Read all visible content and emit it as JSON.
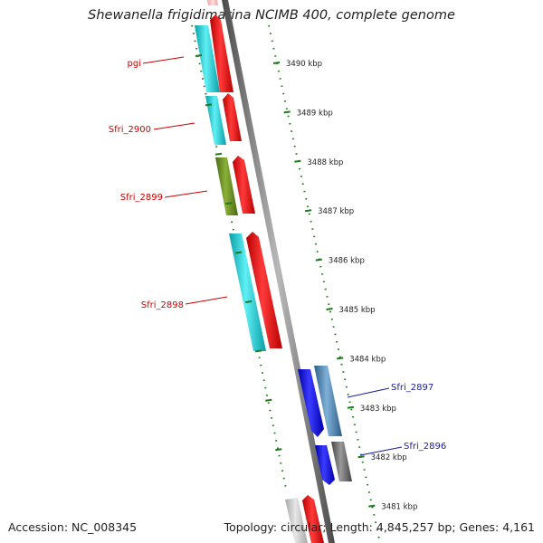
{
  "header": {
    "title": "Shewanella frigidimarina NCIMB 400, complete genome"
  },
  "footer": {
    "accession": "Accession: NC_008345",
    "summary": "Topology: circular; Length: 4,845,257 bp; Genes: 4,161"
  },
  "colors": {
    "forward_labels": "#cc0000",
    "reverse_labels": "#1a1aa0",
    "ticks": "#1e7a1e",
    "backbone": "#777777"
  },
  "map": {
    "tick_unit": "kbp",
    "ticks": [
      3490,
      3489,
      3488,
      3487,
      3486,
      3485,
      3484,
      3483,
      3482,
      3481
    ],
    "genes": [
      {
        "name": "pgi",
        "strand": "forward",
        "color": "cyan"
      },
      {
        "name": "Sfri_2900",
        "strand": "forward",
        "color": "cyan"
      },
      {
        "name": "Sfri_2899",
        "strand": "forward",
        "color": "olive"
      },
      {
        "name": "Sfri_2898",
        "strand": "forward",
        "color": "cyan"
      },
      {
        "name": "Sfri_2897",
        "strand": "reverse",
        "color": "steelblue"
      },
      {
        "name": "Sfri_2896",
        "strand": "reverse",
        "color": "gray"
      }
    ]
  }
}
